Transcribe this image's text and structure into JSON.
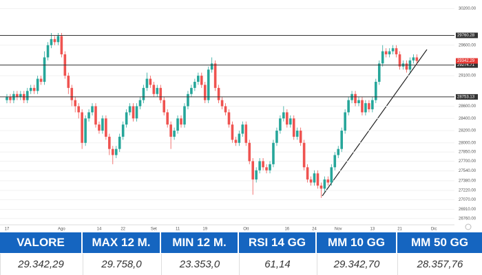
{
  "chart_data": {
    "type": "candlestick",
    "categories": [
      "17",
      null,
      null,
      null,
      null,
      null,
      null,
      null,
      null,
      null,
      null,
      null,
      null,
      null,
      null,
      null,
      "Ago",
      null,
      null,
      null,
      null,
      null,
      null,
      null,
      null,
      null,
      null,
      "14",
      null,
      null,
      null,
      null,
      null,
      null,
      "22",
      null,
      null,
      null,
      null,
      null,
      null,
      null,
      null,
      "Set",
      null,
      null,
      null,
      null,
      null,
      null,
      "11",
      null,
      null,
      null,
      null,
      null,
      null,
      null,
      "19",
      null,
      null,
      null,
      null,
      null,
      null,
      null,
      null,
      null,
      null,
      null,
      "Ott",
      null,
      null,
      null,
      null,
      null,
      null,
      null,
      null,
      null,
      null,
      null,
      "16",
      null,
      null,
      null,
      null,
      null,
      null,
      null,
      "24",
      null,
      null,
      null,
      null,
      null,
      null,
      "Nov",
      null,
      null,
      null,
      null,
      null,
      null,
      null,
      null,
      null,
      "13",
      null,
      null,
      null,
      null,
      null,
      null,
      null,
      "21",
      null,
      null,
      null,
      null,
      null,
      null,
      null,
      null,
      null,
      "Dic",
      null,
      null,
      null,
      null
    ],
    "open": [
      28700,
      28750,
      28700,
      28800,
      28750,
      28800,
      28700,
      28850,
      28900,
      28850,
      29050,
      29000,
      29400,
      29600,
      29700,
      29650,
      29750,
      29450,
      29100,
      28900,
      28700,
      28600,
      28500,
      28000,
      28400,
      28500,
      28600,
      28300,
      28200,
      28400,
      28100,
      27900,
      27800,
      27900,
      28100,
      28300,
      28500,
      28600,
      28400,
      28600,
      28700,
      28900,
      29050,
      28950,
      28800,
      28900,
      28700,
      28500,
      28300,
      28100,
      28200,
      28400,
      28300,
      28600,
      28800,
      28900,
      29000,
      29100,
      28950,
      28700,
      29200,
      29300,
      28900,
      28700,
      28600,
      28500,
      28300,
      28050,
      28000,
      28150,
      28300,
      28000,
      27700,
      27400,
      27550,
      27700,
      27600,
      27550,
      27650,
      28000,
      28200,
      28400,
      28500,
      28300,
      28400,
      28100,
      28200,
      28000,
      27600,
      27400,
      27350,
      27500,
      27300,
      27250,
      27400,
      27350,
      27600,
      27800,
      27900,
      28200,
      28500,
      28700,
      28800,
      28650,
      28700,
      28500,
      28650,
      28550,
      28700,
      29000,
      29300,
      29500,
      29450,
      29500,
      29550,
      29450,
      29250,
      29300,
      29200,
      29350,
      29400,
      null,
      null,
      null,
      null,
      null,
      null,
      null,
      null,
      null
    ],
    "high": [
      28800,
      28800,
      28850,
      28850,
      28850,
      28850,
      28900,
      28950,
      28950,
      29100,
      29100,
      29500,
      29650,
      29800,
      29750,
      29800,
      29800,
      29500,
      29150,
      28950,
      28750,
      28650,
      28550,
      28450,
      28550,
      28650,
      28650,
      28350,
      28450,
      28450,
      28150,
      27950,
      27950,
      28150,
      28350,
      28550,
      28650,
      28650,
      28650,
      28750,
      28950,
      29150,
      29100,
      29000,
      28950,
      28950,
      28750,
      28550,
      28350,
      28250,
      28450,
      28450,
      28650,
      28850,
      28950,
      29050,
      29150,
      29150,
      29000,
      29250,
      29400,
      29350,
      28950,
      28750,
      28650,
      28550,
      28350,
      28100,
      28200,
      28350,
      28350,
      28050,
      27750,
      27600,
      27750,
      27750,
      27650,
      27700,
      28050,
      28250,
      28450,
      28600,
      28550,
      28450,
      28450,
      28250,
      28250,
      28050,
      27650,
      27450,
      27550,
      27550,
      27350,
      27450,
      27450,
      27650,
      27850,
      27950,
      28250,
      28550,
      28750,
      28850,
      28850,
      28750,
      28750,
      28700,
      28700,
      28750,
      29050,
      29350,
      29600,
      29550,
      29550,
      29600,
      29600,
      29500,
      29350,
      29350,
      29400,
      29450,
      29450,
      null,
      null,
      null,
      null,
      null,
      null,
      null,
      null,
      null
    ],
    "low": [
      28650,
      28650,
      28650,
      28700,
      28700,
      28650,
      28650,
      28800,
      28800,
      28800,
      28950,
      28950,
      29350,
      29550,
      29600,
      29600,
      29400,
      29050,
      28800,
      28600,
      28500,
      28400,
      27900,
      27950,
      28350,
      28450,
      28250,
      28150,
      28150,
      28050,
      27800,
      27650,
      27750,
      27850,
      28050,
      28250,
      28450,
      28350,
      28350,
      28550,
      28650,
      28850,
      28900,
      28750,
      28750,
      28650,
      28450,
      28250,
      27900,
      28050,
      28150,
      28250,
      28250,
      28550,
      28750,
      28850,
      28950,
      28900,
      28650,
      28650,
      29150,
      28850,
      28650,
      28550,
      28450,
      28250,
      28000,
      27950,
      27950,
      28100,
      27950,
      27650,
      27150,
      27350,
      27500,
      27550,
      27500,
      27500,
      27600,
      27950,
      28150,
      28350,
      28250,
      28250,
      28050,
      28050,
      27950,
      27550,
      27350,
      27300,
      27300,
      27250,
      27100,
      27200,
      27300,
      27300,
      27550,
      27750,
      27850,
      28150,
      28450,
      28650,
      28600,
      28600,
      28450,
      28450,
      28500,
      28500,
      28650,
      28950,
      29250,
      29400,
      29400,
      29450,
      29400,
      29200,
      29200,
      29150,
      29150,
      29300,
      29300,
      null,
      null,
      null,
      null,
      null,
      null,
      null,
      null,
      null
    ],
    "close": [
      28750,
      28700,
      28800,
      28750,
      28800,
      28700,
      28850,
      28900,
      28850,
      29050,
      29000,
      29400,
      29600,
      29700,
      29650,
      29750,
      29450,
      29100,
      28900,
      28700,
      28600,
      28500,
      28000,
      28400,
      28500,
      28600,
      28300,
      28200,
      28400,
      28100,
      27900,
      27800,
      27900,
      28100,
      28300,
      28500,
      28600,
      28400,
      28600,
      28700,
      28900,
      29050,
      28950,
      28800,
      28900,
      28700,
      28500,
      28300,
      28100,
      28200,
      28400,
      28300,
      28600,
      28800,
      28900,
      29000,
      29100,
      28950,
      28700,
      29200,
      29300,
      28900,
      28700,
      28600,
      28500,
      28300,
      28050,
      28000,
      28150,
      28300,
      28000,
      27700,
      27400,
      27550,
      27700,
      27600,
      27550,
      27650,
      28000,
      28200,
      28400,
      28500,
      28300,
      28400,
      28100,
      28200,
      28000,
      27600,
      27400,
      27350,
      27500,
      27300,
      27250,
      27400,
      27350,
      27600,
      27800,
      27900,
      28200,
      28500,
      28700,
      28800,
      28650,
      28700,
      28500,
      28650,
      28550,
      28700,
      29000,
      29300,
      29500,
      29450,
      29500,
      29550,
      29450,
      29250,
      29300,
      29200,
      29350,
      29400,
      29342.29,
      null,
      null,
      null,
      null,
      null,
      null,
      null,
      null,
      null
    ],
    "up_color": "#26a69a",
    "down_color": "#ef5350",
    "last_color": "#e53935",
    "levels": [
      29760.28,
      29274.71,
      28753.13
    ],
    "level_color": "#333333",
    "ylim": [
      26680,
      30340
    ],
    "yticks": [
      {
        "value": 30200,
        "label": "30200.00"
      },
      {
        "value": 29600,
        "label": "29600.00"
      },
      {
        "value": 29100,
        "label": "29100.00"
      },
      {
        "value": 28600,
        "label": "28600.00"
      },
      {
        "value": 28400,
        "label": "28400.00"
      },
      {
        "value": 28200,
        "label": "28200.00"
      },
      {
        "value": 28000,
        "label": "28000.00"
      },
      {
        "value": 27850,
        "label": "27850.00"
      },
      {
        "value": 27700,
        "label": "27700.00"
      },
      {
        "value": 27540,
        "label": "27540.00"
      },
      {
        "value": 27380,
        "label": "27380.00"
      },
      {
        "value": 27220,
        "label": "27220.00"
      },
      {
        "value": 27070,
        "label": "27070.00"
      },
      {
        "value": 26910,
        "label": "26910.00"
      },
      {
        "value": 26760,
        "label": "26760.00"
      }
    ],
    "grid": true
  },
  "table": {
    "headers": [
      "VALORE",
      "MAX 12 M.",
      "MIN 12 M.",
      "RSI 14 GG",
      "MM 10 GG",
      "MM 50 GG"
    ],
    "rows": [
      [
        "29.342,29",
        "29.758,0",
        "23.353,0",
        "61,14",
        "29.342,70",
        "28.357,76"
      ]
    ]
  }
}
